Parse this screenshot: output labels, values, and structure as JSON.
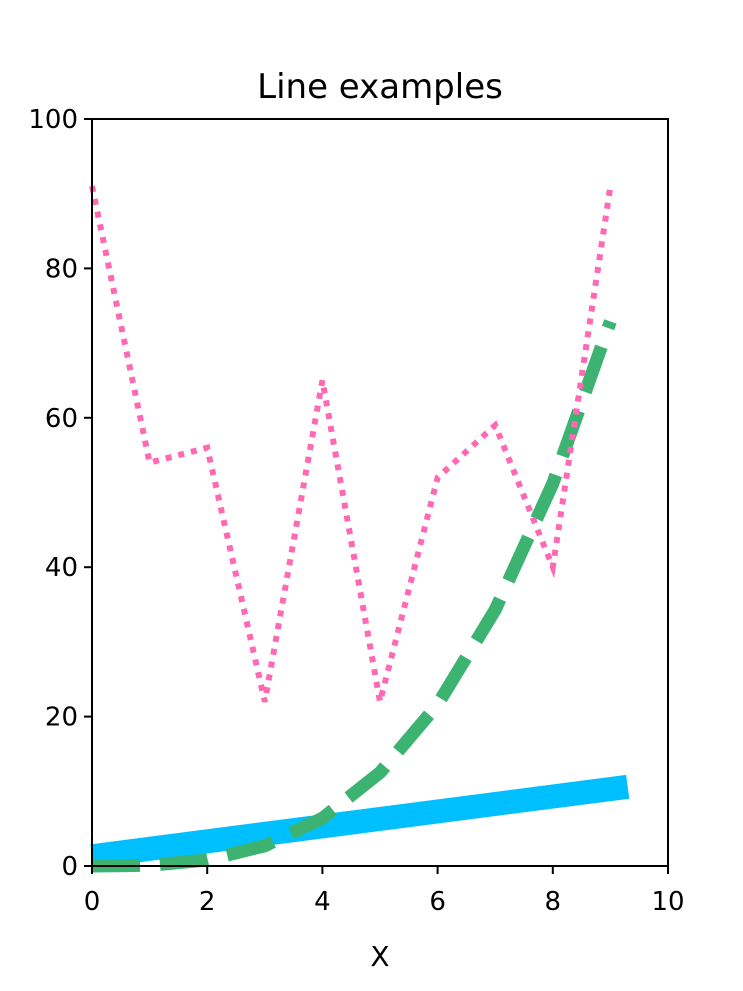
{
  "chart_data": {
    "type": "line",
    "title": "Line examples",
    "xlabel": "X",
    "ylabel": "",
    "xlim": [
      0,
      10
    ],
    "ylim": [
      0,
      100
    ],
    "xticks": [
      0,
      2,
      4,
      6,
      8,
      10
    ],
    "yticks": [
      0,
      20,
      40,
      60,
      80,
      100
    ],
    "grid": false,
    "series": [
      {
        "style": "solid",
        "color": "#00bfff",
        "x": [
          0,
          9.3
        ],
        "y": [
          1.3,
          10.6
        ]
      },
      {
        "style": "dashed",
        "color": "#3cb371",
        "x": [
          0,
          1,
          2,
          3,
          4,
          5,
          6,
          7,
          8,
          9
        ],
        "y": [
          0,
          0.1,
          0.8,
          2.7,
          6.4,
          12.5,
          21.6,
          34.3,
          51.2,
          72.9
        ]
      },
      {
        "style": "dotted",
        "color": "#ff69b4",
        "x": [
          0,
          1,
          2,
          3,
          4,
          5,
          6,
          7,
          8,
          9
        ],
        "y": [
          91,
          54,
          56,
          22,
          65,
          22,
          52,
          59,
          40,
          91
        ]
      }
    ]
  }
}
